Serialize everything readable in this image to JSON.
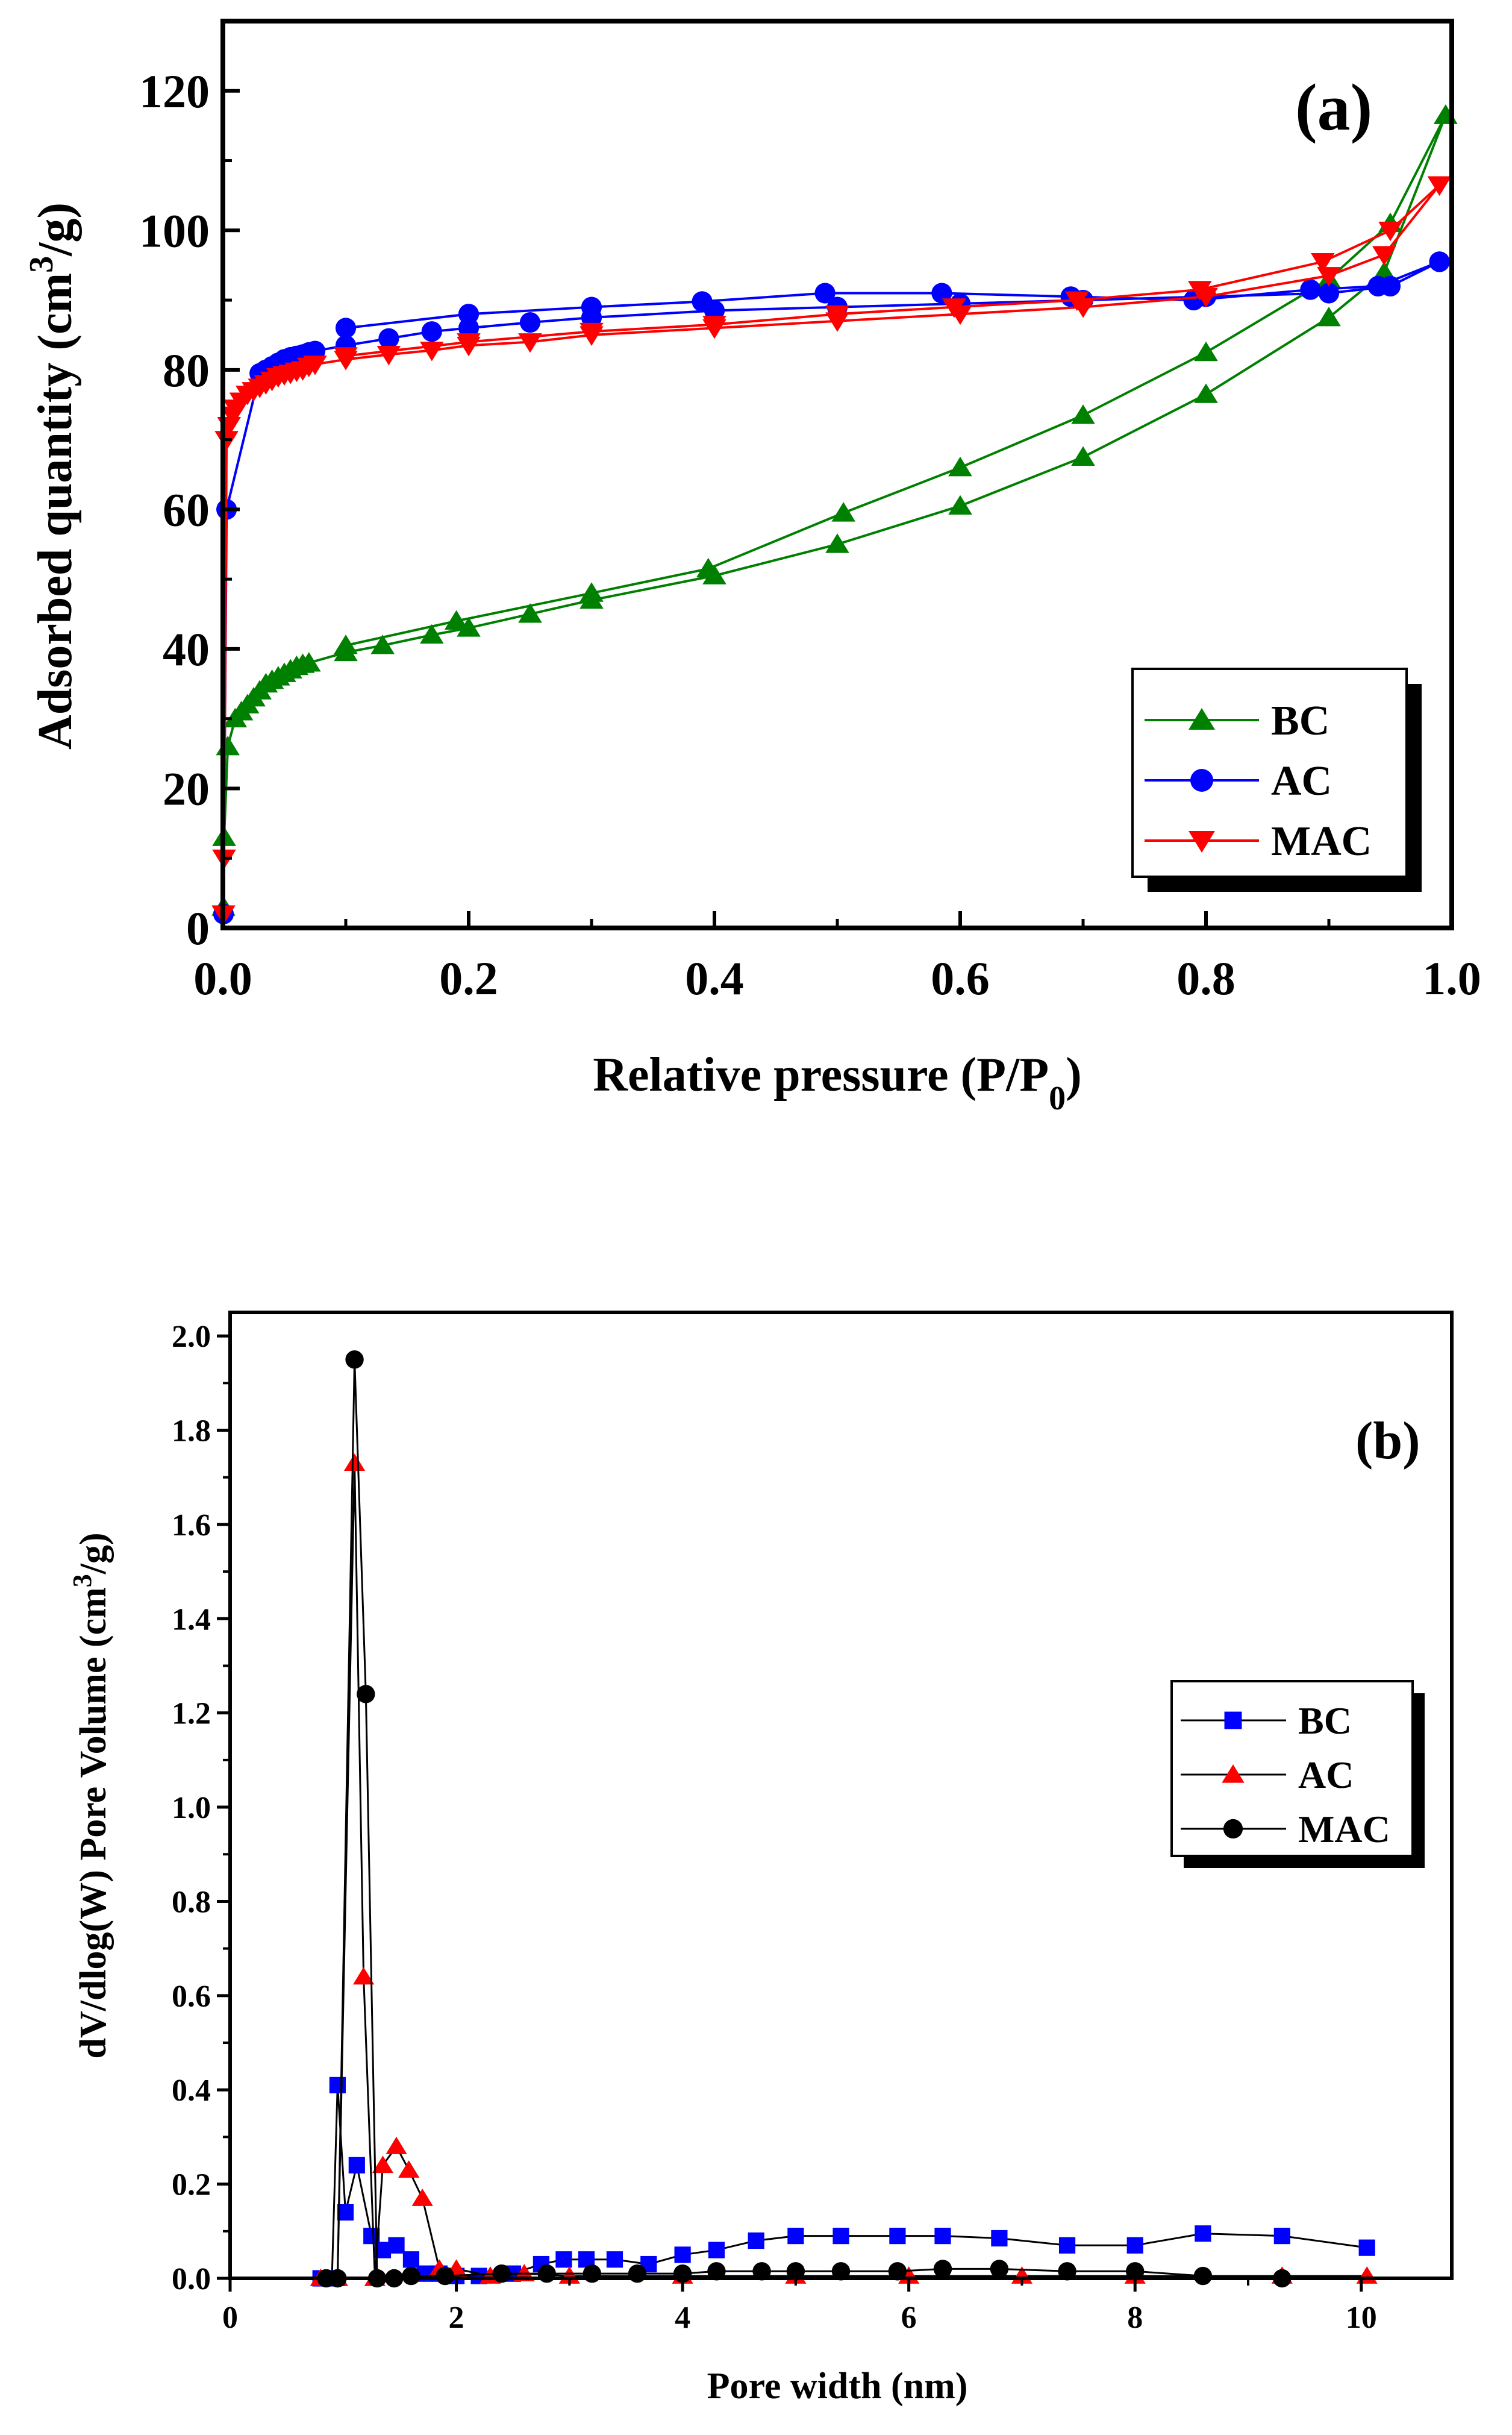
{
  "chart_data": [
    {
      "type": "line",
      "panel_label": "(a)",
      "xlabel_main": "Relative pressure (P/P",
      "xlabel_sub": "0",
      "xlabel_close": ")",
      "ylabel_main": "Adsorbed quantity (cm",
      "ylabel_sup": "3",
      "ylabel_close": "/g)",
      "xlim": [
        0,
        1.0
      ],
      "ylim": [
        0,
        130
      ],
      "xticks": [
        "0.0",
        "0.2",
        "0.4",
        "0.6",
        "0.8",
        "1.0"
      ],
      "yticks": [
        "0",
        "20",
        "40",
        "60",
        "80",
        "100",
        "120"
      ],
      "legend_position": "bottom-right",
      "series": [
        {
          "name": "BC",
          "color": "#008000",
          "marker": "triangle-up",
          "adsorption": [
            [
              0.0005,
              3
            ],
            [
              0.001,
              13
            ],
            [
              0.004,
              26
            ],
            [
              0.01,
              30
            ],
            [
              0.015,
              31
            ],
            [
              0.02,
              32
            ],
            [
              0.025,
              33
            ],
            [
              0.03,
              34
            ],
            [
              0.035,
              35
            ],
            [
              0.04,
              35.5
            ],
            [
              0.045,
              36
            ],
            [
              0.05,
              36.5
            ],
            [
              0.055,
              37
            ],
            [
              0.06,
              37.5
            ],
            [
              0.065,
              37.8
            ],
            [
              0.07,
              38
            ],
            [
              0.1,
              39.5
            ],
            [
              0.13,
              40.5
            ],
            [
              0.17,
              42
            ],
            [
              0.2,
              43
            ],
            [
              0.25,
              45
            ],
            [
              0.3,
              47
            ],
            [
              0.4,
              50.5
            ],
            [
              0.5,
              55
            ],
            [
              0.6,
              60.5
            ],
            [
              0.7,
              67.5
            ],
            [
              0.8,
              76.5
            ],
            [
              0.9,
              87.5
            ],
            [
              0.945,
              94
            ],
            [
              0.995,
              116.5
            ]
          ],
          "desorption": [
            [
              0.995,
              116.5
            ],
            [
              0.95,
              101
            ],
            [
              0.9,
              93
            ],
            [
              0.8,
              82.5
            ],
            [
              0.7,
              73.5
            ],
            [
              0.6,
              66
            ],
            [
              0.505,
              59.5
            ],
            [
              0.395,
              51.5
            ],
            [
              0.3,
              48
            ],
            [
              0.19,
              44
            ],
            [
              0.1,
              40.5
            ]
          ]
        },
        {
          "name": "AC",
          "color": "#0000ff",
          "marker": "circle",
          "adsorption": [
            [
              0.0005,
              2
            ],
            [
              0.003,
              60
            ],
            [
              0.03,
              79.5
            ],
            [
              0.035,
              80
            ],
            [
              0.04,
              80.5
            ],
            [
              0.045,
              81
            ],
            [
              0.05,
              81.5
            ],
            [
              0.055,
              81.8
            ],
            [
              0.06,
              82
            ],
            [
              0.065,
              82.2
            ],
            [
              0.07,
              82.5
            ],
            [
              0.075,
              82.7
            ],
            [
              0.1,
              83.5
            ],
            [
              0.135,
              84.5
            ],
            [
              0.17,
              85.5
            ],
            [
              0.2,
              86
            ],
            [
              0.25,
              86.8
            ],
            [
              0.3,
              87.5
            ],
            [
              0.4,
              88.5
            ],
            [
              0.5,
              89
            ],
            [
              0.6,
              89.5
            ],
            [
              0.7,
              90
            ],
            [
              0.8,
              90.5
            ],
            [
              0.9,
              91
            ],
            [
              0.95,
              92
            ],
            [
              0.99,
              95.5
            ]
          ],
          "desorption": [
            [
              0.99,
              95.5
            ],
            [
              0.94,
              92
            ],
            [
              0.885,
              91.5
            ],
            [
              0.79,
              90
            ],
            [
              0.69,
              90.5
            ],
            [
              0.585,
              91
            ],
            [
              0.49,
              91
            ],
            [
              0.39,
              89.8
            ],
            [
              0.3,
              89
            ],
            [
              0.2,
              88
            ],
            [
              0.1,
              86
            ]
          ]
        },
        {
          "name": "MAC",
          "color": "#ff0000",
          "marker": "triangle-down",
          "adsorption": [
            [
              0.0005,
              2
            ],
            [
              0.001,
              10
            ],
            [
              0.003,
              70
            ],
            [
              0.005,
              72
            ],
            [
              0.008,
              73.5
            ],
            [
              0.01,
              74.5
            ],
            [
              0.015,
              75.5
            ],
            [
              0.02,
              76.5
            ],
            [
              0.025,
              77
            ],
            [
              0.03,
              77.5
            ],
            [
              0.035,
              78
            ],
            [
              0.04,
              78.5
            ],
            [
              0.045,
              79
            ],
            [
              0.05,
              79.3
            ],
            [
              0.055,
              79.5
            ],
            [
              0.06,
              79.8
            ],
            [
              0.065,
              80
            ],
            [
              0.07,
              80.5
            ],
            [
              0.075,
              80.8
            ],
            [
              0.1,
              81.5
            ],
            [
              0.135,
              82.2
            ],
            [
              0.17,
              82.8
            ],
            [
              0.2,
              83.5
            ],
            [
              0.25,
              84
            ],
            [
              0.3,
              85
            ],
            [
              0.4,
              86
            ],
            [
              0.5,
              87
            ],
            [
              0.6,
              88
            ],
            [
              0.7,
              89
            ],
            [
              0.8,
              90.5
            ],
            [
              0.9,
              93.5
            ],
            [
              0.945,
              96.5
            ],
            [
              0.99,
              106.5
            ]
          ],
          "desorption": [
            [
              0.99,
              106.5
            ],
            [
              0.95,
              100
            ],
            [
              0.895,
              95.5
            ],
            [
              0.795,
              91.5
            ],
            [
              0.695,
              90
            ],
            [
              0.595,
              89
            ],
            [
              0.5,
              88
            ],
            [
              0.4,
              86.5
            ],
            [
              0.3,
              85.5
            ],
            [
              0.2,
              84
            ],
            [
              0.1,
              82
            ]
          ]
        }
      ]
    },
    {
      "type": "line",
      "panel_label": "(b)",
      "xlabel": "Pore width (nm)",
      "ylabel_main": "dV/dlog(W) Pore Volume (cm",
      "ylabel_sup": "3",
      "ylabel_close": "/g)",
      "xlim": [
        0,
        10.8
      ],
      "ylim": [
        0,
        2.05
      ],
      "xticks": [
        "0",
        "2",
        "4",
        "6",
        "8",
        "10"
      ],
      "yticks": [
        "0.0",
        "0.2",
        "0.4",
        "0.6",
        "0.8",
        "1.0",
        "1.2",
        "1.4",
        "1.6",
        "1.8",
        "2.0"
      ],
      "legend_position": "right",
      "series": [
        {
          "name": "BC",
          "color": "#0000ff",
          "marker": "square",
          "points": [
            [
              0.8,
              0.0
            ],
            [
              0.9,
              0.0
            ],
            [
              0.95,
              0.41
            ],
            [
              1.02,
              0.14
            ],
            [
              1.12,
              0.24
            ],
            [
              1.25,
              0.09
            ],
            [
              1.35,
              0.06
            ],
            [
              1.47,
              0.07
            ],
            [
              1.6,
              0.04
            ],
            [
              1.72,
              0.01
            ],
            [
              1.85,
              0.01
            ],
            [
              2.0,
              0.005
            ],
            [
              2.2,
              0.005
            ],
            [
              2.5,
              0.01
            ],
            [
              2.75,
              0.03
            ],
            [
              2.95,
              0.04
            ],
            [
              3.15,
              0.04
            ],
            [
              3.4,
              0.04
            ],
            [
              3.7,
              0.03
            ],
            [
              4.0,
              0.05
            ],
            [
              4.3,
              0.06
            ],
            [
              4.65,
              0.08
            ],
            [
              5.0,
              0.09
            ],
            [
              5.4,
              0.09
            ],
            [
              5.9,
              0.09
            ],
            [
              6.3,
              0.09
            ],
            [
              6.8,
              0.085
            ],
            [
              7.4,
              0.07
            ],
            [
              8.0,
              0.07
            ],
            [
              8.6,
              0.095
            ],
            [
              9.3,
              0.09
            ],
            [
              10.05,
              0.065
            ]
          ]
        },
        {
          "name": "AC",
          "color": "#ff0000",
          "marker": "triangle-up",
          "points": [
            [
              0.8,
              0.0
            ],
            [
              0.95,
              0.0
            ],
            [
              1.1,
              1.73
            ],
            [
              1.18,
              0.64
            ],
            [
              1.28,
              0.0
            ],
            [
              1.35,
              0.24
            ],
            [
              1.47,
              0.28
            ],
            [
              1.58,
              0.23
            ],
            [
              1.7,
              0.17
            ],
            [
              1.85,
              0.02
            ],
            [
              2.0,
              0.02
            ],
            [
              2.3,
              0.005
            ],
            [
              2.6,
              0.01
            ],
            [
              3.0,
              0.005
            ],
            [
              4.0,
              0.005
            ],
            [
              5.0,
              0.005
            ],
            [
              6.0,
              0.005
            ],
            [
              7.0,
              0.005
            ],
            [
              8.0,
              0.005
            ],
            [
              9.3,
              0.005
            ],
            [
              10.05,
              0.005
            ]
          ]
        },
        {
          "name": "MAC",
          "color": "#000000",
          "marker": "circle",
          "points": [
            [
              0.85,
              0.0
            ],
            [
              0.95,
              0.0
            ],
            [
              1.1,
              1.95
            ],
            [
              1.2,
              1.24
            ],
            [
              1.3,
              0.0
            ],
            [
              1.45,
              0.0
            ],
            [
              1.6,
              0.005
            ],
            [
              1.9,
              0.005
            ],
            [
              2.4,
              0.01
            ],
            [
              2.8,
              0.01
            ],
            [
              3.2,
              0.01
            ],
            [
              3.6,
              0.01
            ],
            [
              4.0,
              0.01
            ],
            [
              4.3,
              0.015
            ],
            [
              4.7,
              0.015
            ],
            [
              5.0,
              0.015
            ],
            [
              5.4,
              0.015
            ],
            [
              5.9,
              0.015
            ],
            [
              6.3,
              0.02
            ],
            [
              6.8,
              0.02
            ],
            [
              7.4,
              0.015
            ],
            [
              8.0,
              0.015
            ],
            [
              8.6,
              0.005
            ],
            [
              9.3,
              0.0
            ]
          ]
        }
      ]
    }
  ]
}
